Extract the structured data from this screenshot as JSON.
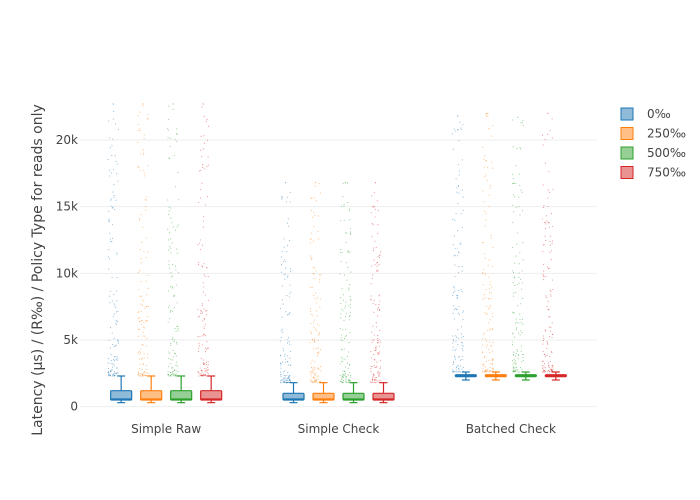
{
  "chart_data": {
    "type": "box",
    "title": "",
    "xlabel": "",
    "ylabel": "Latency (µs) / (R‰) / Policy Type for reads only",
    "ylim": [
      -1000,
      23000
    ],
    "yticks": [
      {
        "value": 0,
        "label": "0"
      },
      {
        "value": 5000,
        "label": "5k"
      },
      {
        "value": 10000,
        "label": "10k"
      },
      {
        "value": 15000,
        "label": "15k"
      },
      {
        "value": 20000,
        "label": "20k"
      }
    ],
    "grid": true,
    "legend_position": "top-right",
    "categories": [
      "Simple Raw",
      "Simple Check",
      "Batched Check"
    ],
    "series": [
      {
        "name": "0‰",
        "color": "#1f77b4",
        "boxes": [
          {
            "min": 300,
            "q1": 500,
            "median": 550,
            "q3": 1200,
            "max": 2300,
            "outlier_max": 22700
          },
          {
            "min": 300,
            "q1": 500,
            "median": 550,
            "q3": 1000,
            "max": 1800,
            "outlier_max": 16800
          },
          {
            "min": 2000,
            "q1": 2250,
            "median": 2300,
            "q3": 2400,
            "max": 2600,
            "outlier_max": 21800
          }
        ]
      },
      {
        "name": "250‰",
        "color": "#ff7f0e",
        "boxes": [
          {
            "min": 300,
            "q1": 500,
            "median": 550,
            "q3": 1200,
            "max": 2300,
            "outlier_max": 22700
          },
          {
            "min": 300,
            "q1": 500,
            "median": 550,
            "q3": 1000,
            "max": 1800,
            "outlier_max": 16800
          },
          {
            "min": 2000,
            "q1": 2250,
            "median": 2300,
            "q3": 2400,
            "max": 2600,
            "outlier_max": 22000
          }
        ]
      },
      {
        "name": "500‰",
        "color": "#2ca02c",
        "boxes": [
          {
            "min": 300,
            "q1": 500,
            "median": 550,
            "q3": 1200,
            "max": 2300,
            "outlier_max": 22700
          },
          {
            "min": 300,
            "q1": 500,
            "median": 550,
            "q3": 1000,
            "max": 1800,
            "outlier_max": 16800
          },
          {
            "min": 2000,
            "q1": 2250,
            "median": 2300,
            "q3": 2400,
            "max": 2600,
            "outlier_max": 21700
          }
        ]
      },
      {
        "name": "750‰",
        "color": "#d62728",
        "boxes": [
          {
            "min": 300,
            "q1": 500,
            "median": 550,
            "q3": 1200,
            "max": 2300,
            "outlier_max": 22700
          },
          {
            "min": 300,
            "q1": 500,
            "median": 550,
            "q3": 1000,
            "max": 1800,
            "outlier_max": 16800
          },
          {
            "min": 2000,
            "q1": 2250,
            "median": 2300,
            "q3": 2400,
            "max": 2600,
            "outlier_max": 22000
          }
        ]
      }
    ]
  }
}
